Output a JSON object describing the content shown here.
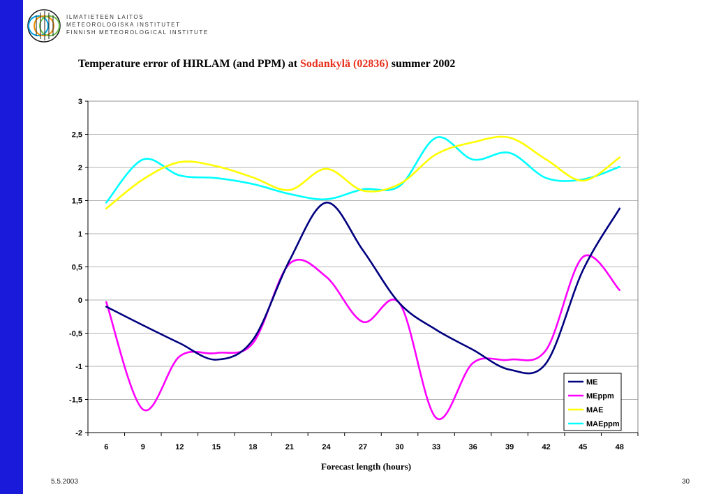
{
  "header": {
    "org_lines": [
      "ILMATIETEEN LAITOS",
      "METEOROLOGISKA INSTITUTET",
      "FINNISH METEOROLOGICAL INSTITUTE"
    ]
  },
  "title": {
    "part1": "Temperature error of HIRLAM (and PPM) at ",
    "part2": "Sodankylä (02836)",
    "part3": " summer 2002"
  },
  "footer": {
    "date": "5.5.2003",
    "page": "30"
  },
  "colors": {
    "sidebar": "#1a1adb",
    "title_accent": "#e8321e"
  },
  "chart_data": {
    "type": "line",
    "title": "Temperature error of HIRLAM (and PPM) at Sodankylä (02836) summer 2002",
    "xlabel": "Forecast length (hours)",
    "ylabel": "",
    "x": [
      6,
      9,
      12,
      15,
      18,
      21,
      24,
      27,
      30,
      33,
      36,
      39,
      42,
      45,
      48
    ],
    "ylim": [
      -2,
      3
    ],
    "yticks": [
      -2,
      -1.5,
      -1,
      -0.5,
      0,
      0.5,
      1,
      1.5,
      2,
      2.5,
      3
    ],
    "ytick_labels": [
      "-2",
      "-1,5",
      "-1",
      "-0,5",
      "0",
      "0,5",
      "1",
      "1,5",
      "2",
      "2,5",
      "3"
    ],
    "xtick_labels": [
      "6",
      "9",
      "12",
      "15",
      "18",
      "21",
      "24",
      "27",
      "30",
      "33",
      "36",
      "39",
      "42",
      "45",
      "48"
    ],
    "grid": true,
    "legend_position": "bottom-right",
    "series": [
      {
        "name": "ME",
        "color": "#000080",
        "values": [
          -0.1,
          -0.38,
          -0.65,
          -0.9,
          -0.6,
          0.6,
          1.47,
          0.75,
          -0.05,
          -0.45,
          -0.75,
          -1.05,
          -0.95,
          0.45,
          1.38
        ]
      },
      {
        "name": "MEppm",
        "color": "#ff00ff",
        "values": [
          -0.03,
          -1.65,
          -0.85,
          -0.8,
          -0.65,
          0.55,
          0.35,
          -0.33,
          -0.05,
          -1.78,
          -0.95,
          -0.9,
          -0.75,
          0.65,
          0.15
        ]
      },
      {
        "name": "MAE",
        "color": "#ffff00",
        "values": [
          1.38,
          1.82,
          2.08,
          2.02,
          1.85,
          1.66,
          1.98,
          1.65,
          1.75,
          2.2,
          2.38,
          2.45,
          2.12,
          1.8,
          2.15
        ]
      },
      {
        "name": "MAEppm",
        "color": "#00ffff",
        "values": [
          1.47,
          2.12,
          1.88,
          1.84,
          1.75,
          1.6,
          1.52,
          1.67,
          1.72,
          2.45,
          2.12,
          2.22,
          1.84,
          1.82,
          2.01
        ]
      }
    ]
  }
}
